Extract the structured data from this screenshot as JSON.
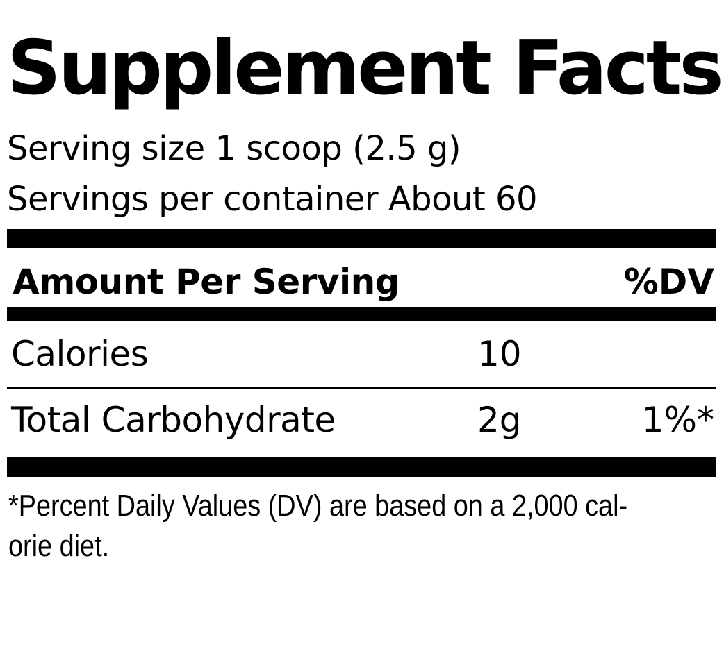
{
  "label": {
    "title": "Supplement Facts",
    "serving_size": "Serving size 1 scoop (2.5 g)",
    "servings_per_container": "Servings per container About 60"
  },
  "table": {
    "header_amount": "Amount Per Serving",
    "header_dv": "%DV",
    "rows": [
      {
        "name": "Calories",
        "amount": "10",
        "dv": ""
      },
      {
        "name": "Total Carbohydrate",
        "amount": "2g",
        "dv": "1%*"
      }
    ]
  },
  "footnote": {
    "line1": "*Percent Daily Values (DV) are based on a 2,000 cal-",
    "line2": "orie diet."
  },
  "colors": {
    "text": "#000000",
    "background": "#ffffff",
    "rules": "#000000"
  }
}
